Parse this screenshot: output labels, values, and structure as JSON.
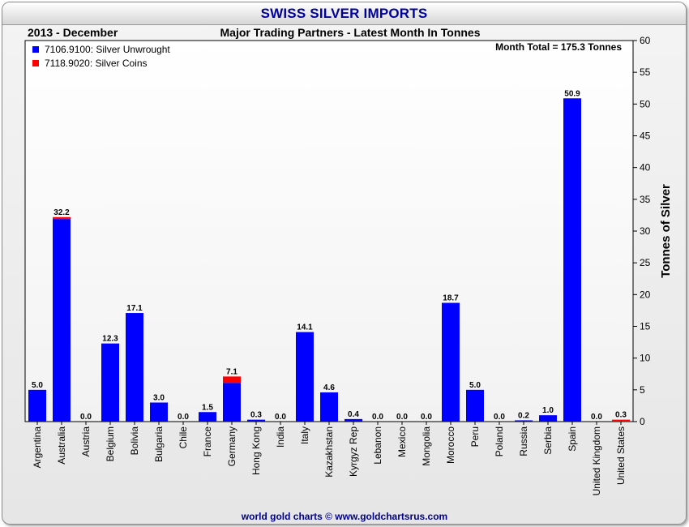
{
  "header": {
    "title": "SWISS SILVER IMPORTS",
    "date": "2013 - December",
    "subtitle": "Major Trading Partners - Latest Month In Tonnes",
    "month_total": "Month Total = 175.3 Tonnes"
  },
  "legend": {
    "items": [
      {
        "label": "7106.9100: Silver Unwrought",
        "color": "#0000ff"
      },
      {
        "label": "7118.9020: Silver Coins",
        "color": "#ff0000"
      }
    ]
  },
  "footer": "world gold charts © www.goldchartsrus.com",
  "chart_data": {
    "type": "bar",
    "stacked": true,
    "title": "SWISS SILVER IMPORTS",
    "subtitle": "Major Trading Partners - Latest Month In Tonnes",
    "ylabel": "Tonnes of Silver",
    "xlabel": "",
    "ylim": [
      0,
      60
    ],
    "ytick_step": 5,
    "ytick_labels": [
      "0",
      "5",
      "10",
      "15",
      "20",
      "25",
      "30",
      "35",
      "40",
      "45",
      "50",
      "55",
      "60"
    ],
    "y_axis_position": "right",
    "grid": false,
    "legend_position": "top-left",
    "categories": [
      "Argentina",
      "Australia",
      "Austria",
      "Belgium",
      "Bolivia",
      "Bulgaria",
      "Chile",
      "France",
      "Germany",
      "Hong Kong",
      "India",
      "Italy",
      "Kazakhstan",
      "Kyrgyz Rep",
      "Lebanon",
      "Mexico",
      "Mongolia",
      "Morocco",
      "Peru",
      "Poland",
      "Russia",
      "Serbia",
      "Spain",
      "United Kingdom",
      "United States"
    ],
    "series": [
      {
        "name": "7106.9100: Silver Unwrought",
        "color": "#0000ff",
        "values": [
          5.0,
          31.9,
          0.0,
          12.3,
          17.1,
          3.0,
          0.0,
          1.5,
          6.1,
          0.3,
          0.0,
          14.1,
          4.6,
          0.4,
          0.0,
          0.0,
          0.0,
          18.7,
          5.0,
          0.0,
          0.2,
          1.0,
          50.9,
          0.0,
          0.0
        ]
      },
      {
        "name": "7118.9020: Silver Coins",
        "color": "#ff0000",
        "values": [
          0.0,
          0.3,
          0.0,
          0.0,
          0.0,
          0.0,
          0.0,
          0.0,
          1.0,
          0.0,
          0.0,
          0.0,
          0.0,
          0.0,
          0.0,
          0.0,
          0.0,
          0.0,
          0.0,
          0.0,
          0.0,
          0.0,
          0.0,
          0.0,
          0.3
        ]
      }
    ],
    "data_labels": [
      "5.0",
      "32.2",
      "0.0",
      "12.3",
      "17.1",
      "3.0",
      "0.0",
      "1.5",
      "7.1",
      "0.3",
      "0.0",
      "14.1",
      "4.6",
      "0.4",
      "0.0",
      "0.0",
      "0.0",
      "18.7",
      "5.0",
      "0.0",
      "0.2",
      "1.0",
      "50.9",
      "0.0",
      "0.3"
    ]
  }
}
